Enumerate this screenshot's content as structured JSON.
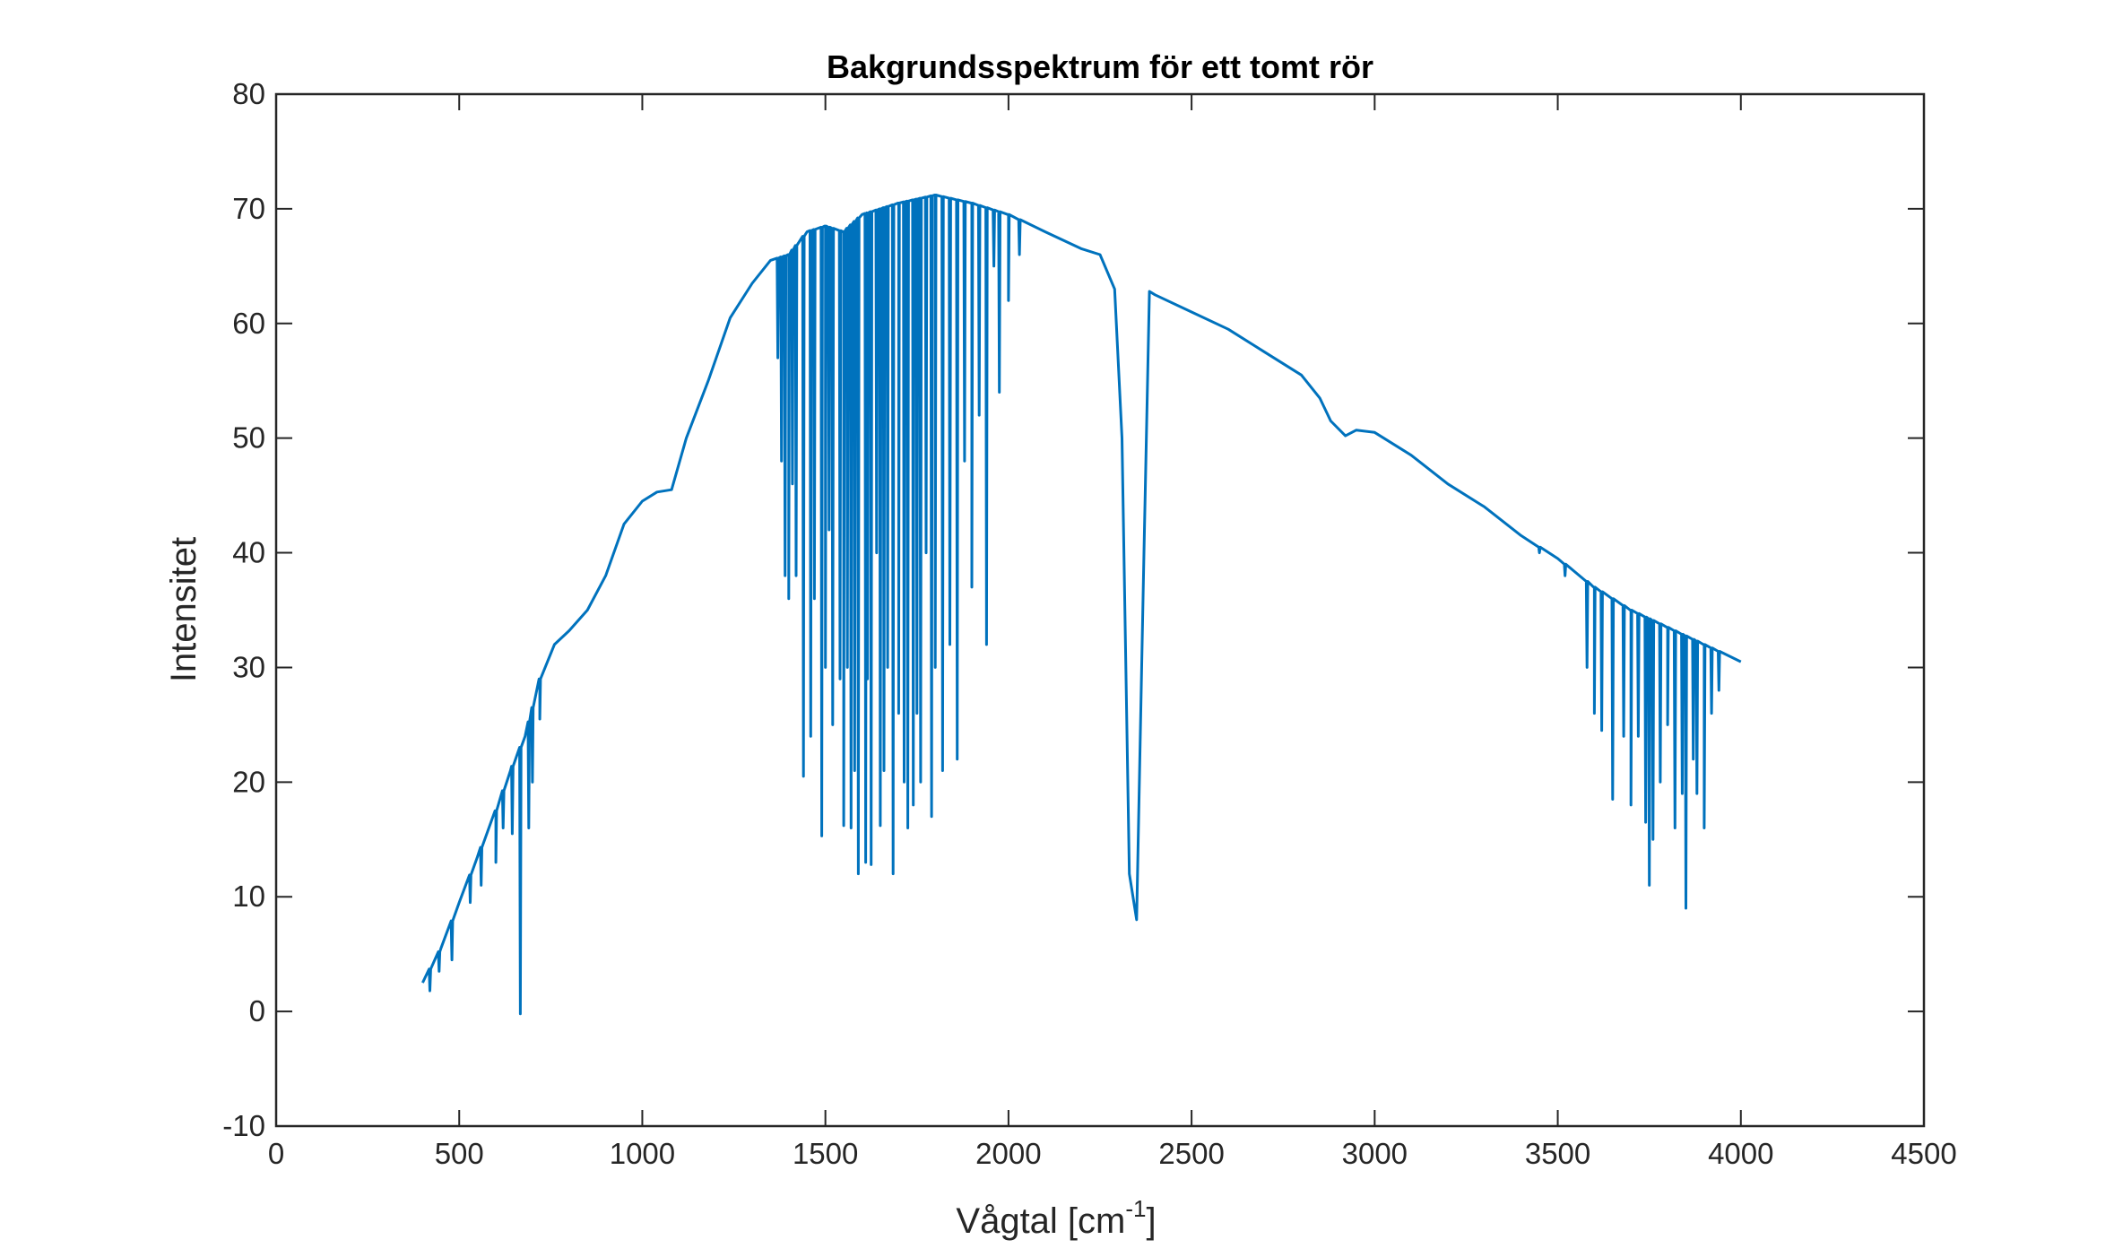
{
  "chart_data": {
    "type": "line",
    "title": "Bakgrundsspektrum för ett tomt rör",
    "xlabel": "Vågtal [cm",
    "xlabel_sup": "-1",
    "xlabel_end": "]",
    "ylabel": "Intensitet",
    "xlim": [
      0,
      4500
    ],
    "ylim": [
      -10,
      80
    ],
    "xticks": [
      0,
      500,
      1000,
      1500,
      2000,
      2500,
      3000,
      3500,
      4000,
      4500
    ],
    "xtick_labels": [
      "0",
      "500",
      "1000",
      "1500",
      "2000",
      "2500",
      "3000",
      "3500",
      "4000",
      "4500"
    ],
    "yticks": [
      -10,
      0,
      10,
      20,
      30,
      40,
      50,
      60,
      70,
      80
    ],
    "ytick_labels": [
      "-10",
      "0",
      "10",
      "20",
      "30",
      "40",
      "50",
      "60",
      "70",
      "80"
    ],
    "grid": false,
    "legend": "none",
    "line_color": "#0072BD",
    "series": [
      {
        "envelope": [
          [
            400,
            2.5
          ],
          [
            450,
            5.5
          ],
          [
            500,
            9.5
          ],
          [
            550,
            13.5
          ],
          [
            600,
            17.5
          ],
          [
            640,
            21
          ],
          [
            680,
            24
          ],
          [
            720,
            29
          ],
          [
            760,
            32
          ],
          [
            800,
            33.2
          ],
          [
            850,
            35
          ],
          [
            900,
            38
          ],
          [
            950,
            42.5
          ],
          [
            1000,
            44.5
          ],
          [
            1040,
            45.3
          ],
          [
            1080,
            45.5
          ],
          [
            1120,
            50
          ],
          [
            1180,
            55
          ],
          [
            1240,
            60.5
          ],
          [
            1300,
            63.5
          ],
          [
            1350,
            65.5
          ],
          [
            1400,
            66
          ],
          [
            1450,
            68
          ],
          [
            1500,
            68.5
          ],
          [
            1550,
            68
          ],
          [
            1600,
            69.5
          ],
          [
            1700,
            70.5
          ],
          [
            1800,
            71.2
          ],
          [
            1900,
            70.5
          ],
          [
            2000,
            69.5
          ],
          [
            2100,
            68
          ],
          [
            2200,
            66.5
          ],
          [
            2250,
            66
          ],
          [
            2290,
            63
          ],
          [
            2310,
            50
          ],
          [
            2330,
            12
          ],
          [
            2350,
            8
          ],
          [
            2370,
            40
          ],
          [
            2385,
            62.8
          ],
          [
            2400,
            62.5
          ],
          [
            2500,
            61
          ],
          [
            2600,
            59.5
          ],
          [
            2700,
            57.5
          ],
          [
            2800,
            55.5
          ],
          [
            2850,
            53.5
          ],
          [
            2880,
            51.5
          ],
          [
            2920,
            50.2
          ],
          [
            2950,
            50.7
          ],
          [
            3000,
            50.5
          ],
          [
            3100,
            48.5
          ],
          [
            3200,
            46
          ],
          [
            3300,
            44
          ],
          [
            3400,
            41.5
          ],
          [
            3500,
            39.5
          ],
          [
            3600,
            37
          ],
          [
            3700,
            35
          ],
          [
            3800,
            33.5
          ],
          [
            3900,
            32
          ],
          [
            4000,
            30.5
          ]
        ],
        "dips": [
          [
            420,
            1.8
          ],
          [
            445,
            3.5
          ],
          [
            480,
            4.5
          ],
          [
            530,
            9.5
          ],
          [
            560,
            11
          ],
          [
            600,
            13
          ],
          [
            620,
            16
          ],
          [
            645,
            15.5
          ],
          [
            667,
            -0.2
          ],
          [
            690,
            16
          ],
          [
            700,
            20
          ],
          [
            720,
            25.5
          ],
          [
            1370,
            57
          ],
          [
            1380,
            48
          ],
          [
            1390,
            38
          ],
          [
            1400,
            36
          ],
          [
            1410,
            46
          ],
          [
            1420,
            38
          ],
          [
            1440,
            20.5
          ],
          [
            1460,
            24
          ],
          [
            1470,
            36
          ],
          [
            1490,
            15.3
          ],
          [
            1500,
            30
          ],
          [
            1510,
            42
          ],
          [
            1520,
            25
          ],
          [
            1540,
            29
          ],
          [
            1550,
            16.2
          ],
          [
            1560,
            30
          ],
          [
            1570,
            16
          ],
          [
            1580,
            21
          ],
          [
            1590,
            12
          ],
          [
            1610,
            13
          ],
          [
            1615,
            29
          ],
          [
            1625,
            12.8
          ],
          [
            1640,
            40
          ],
          [
            1650,
            16.2
          ],
          [
            1660,
            21
          ],
          [
            1670,
            30
          ],
          [
            1685,
            12
          ],
          [
            1700,
            26
          ],
          [
            1715,
            20
          ],
          [
            1725,
            16
          ],
          [
            1740,
            18
          ],
          [
            1750,
            26
          ],
          [
            1760,
            20
          ],
          [
            1775,
            40
          ],
          [
            1790,
            17
          ],
          [
            1800,
            30
          ],
          [
            1820,
            21
          ],
          [
            1840,
            32
          ],
          [
            1860,
            22
          ],
          [
            1880,
            48
          ],
          [
            1900,
            37
          ],
          [
            1920,
            52
          ],
          [
            1940,
            32
          ],
          [
            1960,
            65
          ],
          [
            1975,
            54
          ],
          [
            2000,
            62
          ],
          [
            2030,
            66
          ],
          [
            3450,
            40
          ],
          [
            3520,
            38
          ],
          [
            3580,
            30
          ],
          [
            3600,
            26
          ],
          [
            3620,
            24.5
          ],
          [
            3650,
            18.5
          ],
          [
            3680,
            24
          ],
          [
            3700,
            18
          ],
          [
            3720,
            24
          ],
          [
            3740,
            16.5
          ],
          [
            3750,
            11
          ],
          [
            3760,
            15
          ],
          [
            3780,
            20
          ],
          [
            3800,
            25
          ],
          [
            3820,
            16
          ],
          [
            3840,
            19
          ],
          [
            3850,
            9
          ],
          [
            3870,
            22
          ],
          [
            3880,
            19
          ],
          [
            3900,
            16
          ],
          [
            3920,
            26
          ],
          [
            3940,
            28
          ]
        ]
      }
    ]
  }
}
